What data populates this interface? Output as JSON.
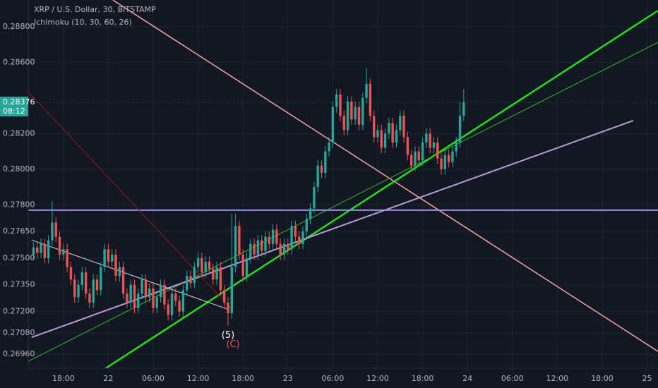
{
  "chart_data": {
    "type": "candlestick",
    "title": "XRP / U.S. Dollar, 30, BITSTAMP",
    "subtitle": "Ichimoku (10, 30, 60, 26)",
    "up_color": "#26a69a",
    "down_color": "#ef5350",
    "open": [
      0.2752,
      0.2756,
      0.2753,
      0.2758,
      0.275,
      0.276,
      0.277,
      0.2762,
      0.2752,
      0.2755,
      0.2745,
      0.2738,
      0.2728,
      0.2735,
      0.2742,
      0.273,
      0.2725,
      0.2738,
      0.2732,
      0.2745,
      0.2755,
      0.2748,
      0.2752,
      0.274,
      0.2745,
      0.273,
      0.2725,
      0.2735,
      0.2722,
      0.273,
      0.2738,
      0.2728,
      0.2733,
      0.2722,
      0.2728,
      0.2735,
      0.2724,
      0.2718,
      0.273,
      0.2726,
      0.272,
      0.2732,
      0.274,
      0.2736,
      0.2745,
      0.275,
      0.2742,
      0.2748,
      0.2744,
      0.2738,
      0.2745,
      0.2732,
      0.2725,
      0.2719,
      0.2745,
      0.2768,
      0.2752,
      0.274,
      0.275,
      0.2758,
      0.2752,
      0.276,
      0.2754,
      0.2762,
      0.2758,
      0.2766,
      0.2758,
      0.2752,
      0.2758,
      0.2755,
      0.2768,
      0.2762,
      0.2758,
      0.2765,
      0.2772,
      0.2778,
      0.279,
      0.2802,
      0.2798,
      0.281,
      0.2815,
      0.2835,
      0.2842,
      0.283,
      0.2822,
      0.2838,
      0.2828,
      0.2835,
      0.2825,
      0.284,
      0.2848,
      0.283,
      0.2818,
      0.2822,
      0.2812,
      0.282,
      0.2826,
      0.2815,
      0.2822,
      0.283,
      0.2818,
      0.2808,
      0.2802,
      0.281,
      0.2805,
      0.2815,
      0.282,
      0.2812,
      0.2815,
      0.2806,
      0.28,
      0.2808,
      0.2804,
      0.281,
      0.2815,
      0.283
    ],
    "high": [
      0.2759,
      0.2759,
      0.2761,
      0.2761,
      0.2763,
      0.2782,
      0.2773,
      0.2765,
      0.2758,
      0.2758,
      0.2748,
      0.2741,
      0.2738,
      0.2745,
      0.2745,
      0.2733,
      0.2741,
      0.2741,
      0.2748,
      0.2758,
      0.2758,
      0.2755,
      0.2755,
      0.2748,
      0.2748,
      0.2733,
      0.2738,
      0.2738,
      0.2733,
      0.2741,
      0.2741,
      0.2736,
      0.2736,
      0.2731,
      0.2738,
      0.2738,
      0.2727,
      0.2733,
      0.2733,
      0.2729,
      0.2735,
      0.2743,
      0.2743,
      0.2748,
      0.2753,
      0.2753,
      0.2751,
      0.2751,
      0.2747,
      0.2748,
      0.2748,
      0.2735,
      0.2728,
      0.2775,
      0.2775,
      0.2771,
      0.2755,
      0.2753,
      0.2761,
      0.2761,
      0.2763,
      0.2763,
      0.2765,
      0.2765,
      0.2769,
      0.2769,
      0.2761,
      0.2761,
      0.2761,
      0.2771,
      0.2771,
      0.2765,
      0.2768,
      0.2775,
      0.2781,
      0.2793,
      0.2805,
      0.2805,
      0.2813,
      0.2818,
      0.2838,
      0.2845,
      0.2845,
      0.2833,
      0.2841,
      0.2841,
      0.2838,
      0.2838,
      0.2843,
      0.2857,
      0.2851,
      0.2833,
      0.2825,
      0.2825,
      0.2823,
      0.2829,
      0.2829,
      0.2825,
      0.2833,
      0.2833,
      0.2821,
      0.2811,
      0.2813,
      0.2813,
      0.2818,
      0.2823,
      0.2823,
      0.2818,
      0.2818,
      0.2809,
      0.2811,
      0.2811,
      0.2813,
      0.2818,
      0.2838,
      0.2845
    ],
    "low": [
      0.2749,
      0.275,
      0.275,
      0.2747,
      0.2747,
      0.2757,
      0.2759,
      0.2749,
      0.2749,
      0.2742,
      0.2735,
      0.2725,
      0.2725,
      0.2732,
      0.2727,
      0.2722,
      0.2722,
      0.2729,
      0.2729,
      0.2742,
      0.2745,
      0.2745,
      0.2737,
      0.2737,
      0.2727,
      0.2722,
      0.2722,
      0.2719,
      0.2719,
      0.2727,
      0.2725,
      0.2725,
      0.2719,
      0.2719,
      0.2725,
      0.2721,
      0.2715,
      0.2715,
      0.2723,
      0.2717,
      0.2717,
      0.2729,
      0.2733,
      0.2733,
      0.2742,
      0.2739,
      0.2739,
      0.2741,
      0.2735,
      0.2735,
      0.2729,
      0.2722,
      0.2712,
      0.2716,
      0.2742,
      0.2749,
      0.2737,
      0.2737,
      0.2747,
      0.2749,
      0.2749,
      0.2751,
      0.2751,
      0.2755,
      0.2755,
      0.2755,
      0.2749,
      0.2749,
      0.2752,
      0.2752,
      0.2759,
      0.2755,
      0.2755,
      0.2762,
      0.2769,
      0.2775,
      0.2787,
      0.2795,
      0.2795,
      0.2807,
      0.2812,
      0.2832,
      0.2827,
      0.2819,
      0.2819,
      0.2825,
      0.2825,
      0.2822,
      0.2822,
      0.2837,
      0.2827,
      0.2815,
      0.2815,
      0.2809,
      0.2809,
      0.2817,
      0.2812,
      0.2812,
      0.2819,
      0.2815,
      0.2805,
      0.2799,
      0.2799,
      0.2802,
      0.2802,
      0.2812,
      0.2809,
      0.2809,
      0.2803,
      0.2797,
      0.2797,
      0.2801,
      0.2801,
      0.2807,
      0.2812,
      0.2827
    ],
    "close": [
      0.2756,
      0.2753,
      0.2758,
      0.275,
      0.276,
      0.277,
      0.2762,
      0.2752,
      0.2755,
      0.2745,
      0.2738,
      0.2728,
      0.2735,
      0.2742,
      0.273,
      0.2725,
      0.2738,
      0.2732,
      0.2745,
      0.2755,
      0.2748,
      0.2752,
      0.274,
      0.2745,
      0.273,
      0.2725,
      0.2735,
      0.2722,
      0.273,
      0.2738,
      0.2728,
      0.2733,
      0.2722,
      0.2728,
      0.2735,
      0.2724,
      0.2718,
      0.273,
      0.2726,
      0.272,
      0.2732,
      0.274,
      0.2736,
      0.2745,
      0.275,
      0.2742,
      0.2748,
      0.2744,
      0.2738,
      0.2745,
      0.2732,
      0.2725,
      0.2719,
      0.2745,
      0.2768,
      0.2752,
      0.274,
      0.275,
      0.2758,
      0.2752,
      0.276,
      0.2754,
      0.2762,
      0.2758,
      0.2766,
      0.2758,
      0.2752,
      0.2758,
      0.2755,
      0.2768,
      0.2762,
      0.2758,
      0.2765,
      0.2772,
      0.2778,
      0.279,
      0.2802,
      0.2798,
      0.281,
      0.2815,
      0.2835,
      0.2842,
      0.283,
      0.2822,
      0.2838,
      0.2828,
      0.2835,
      0.2825,
      0.284,
      0.2848,
      0.283,
      0.2818,
      0.2822,
      0.2812,
      0.282,
      0.2826,
      0.2815,
      0.2822,
      0.283,
      0.2818,
      0.2808,
      0.2802,
      0.281,
      0.2805,
      0.2815,
      0.282,
      0.2812,
      0.2815,
      0.2806,
      0.28,
      0.2808,
      0.2804,
      0.281,
      0.2815,
      0.283,
      0.28376
    ],
    "xlim": [
      -1.4,
      165.6
    ],
    "xticks": [
      {
        "value": 8,
        "label": "18:00"
      },
      {
        "value": 20,
        "label": "22"
      },
      {
        "value": 32,
        "label": "06:00"
      },
      {
        "value": 44,
        "label": "12:00"
      },
      {
        "value": 56,
        "label": "18:00"
      },
      {
        "value": 68,
        "label": "23"
      },
      {
        "value": 80,
        "label": "06:00"
      },
      {
        "value": 92,
        "label": "12:00"
      },
      {
        "value": 104,
        "label": "18:00"
      },
      {
        "value": 116,
        "label": "24"
      },
      {
        "value": 128,
        "label": "06:00"
      },
      {
        "value": 140,
        "label": "12:00"
      },
      {
        "value": 152,
        "label": "18:00"
      },
      {
        "value": 164,
        "label": "25"
      }
    ],
    "ylim": [
      0.26889,
      0.28951
    ],
    "yticks": [
      {
        "value": 0.288,
        "label": "0.28800"
      },
      {
        "value": 0.286,
        "label": "0.28600"
      },
      {
        "value": 0.282,
        "label": "0.28200"
      },
      {
        "value": 0.28,
        "label": "0.28000"
      },
      {
        "value": 0.278,
        "label": "0.27800"
      },
      {
        "value": 0.2765,
        "label": "0.27650"
      },
      {
        "value": 0.275,
        "label": "0.27500"
      },
      {
        "value": 0.2735,
        "label": "0.27350"
      },
      {
        "value": 0.272,
        "label": "0.27200"
      },
      {
        "value": 0.2708,
        "label": "0.27080"
      },
      {
        "value": 0.2696,
        "label": "0.26960"
      }
    ],
    "grid": true,
    "last_price": 0.28376,
    "countdown": "08:12",
    "trendlines": [
      {
        "x": [
          21.2,
          166.9
        ],
        "y": [
          0.28951,
          0.26976
        ],
        "color": "#f4a5a5",
        "width": 1.5
      },
      {
        "x": [
          19.3,
          166.9
        ],
        "y": [
          0.26881,
          0.28891
        ],
        "color": "#22e01a",
        "width": 2.5
      },
      {
        "x": [
          -1.4,
          166.9
        ],
        "y": [
          0.2692,
          0.28713
        ],
        "color": "#2fb82a",
        "width": 1
      },
      {
        "x": [
          -0.5,
          160.3
        ],
        "y": [
          0.27055,
          0.28273
        ],
        "color": "#b39ddb",
        "width": 2
      },
      {
        "x": [
          -1.4,
          166.9
        ],
        "y": [
          0.2777,
          0.2777
        ],
        "color": "#9c8ee0",
        "width": 2
      },
      {
        "x": [
          -1.4,
          53.3
        ],
        "y": [
          0.28435,
          0.27206
        ],
        "color": "#8b1c1c",
        "width": 1
      },
      {
        "x": [
          -0.5,
          51.8
        ],
        "y": [
          0.27602,
          0.27214
        ],
        "color": "#d8d8e8",
        "width": 1
      }
    ],
    "annotations": [
      "(5)",
      "(C)"
    ]
  }
}
